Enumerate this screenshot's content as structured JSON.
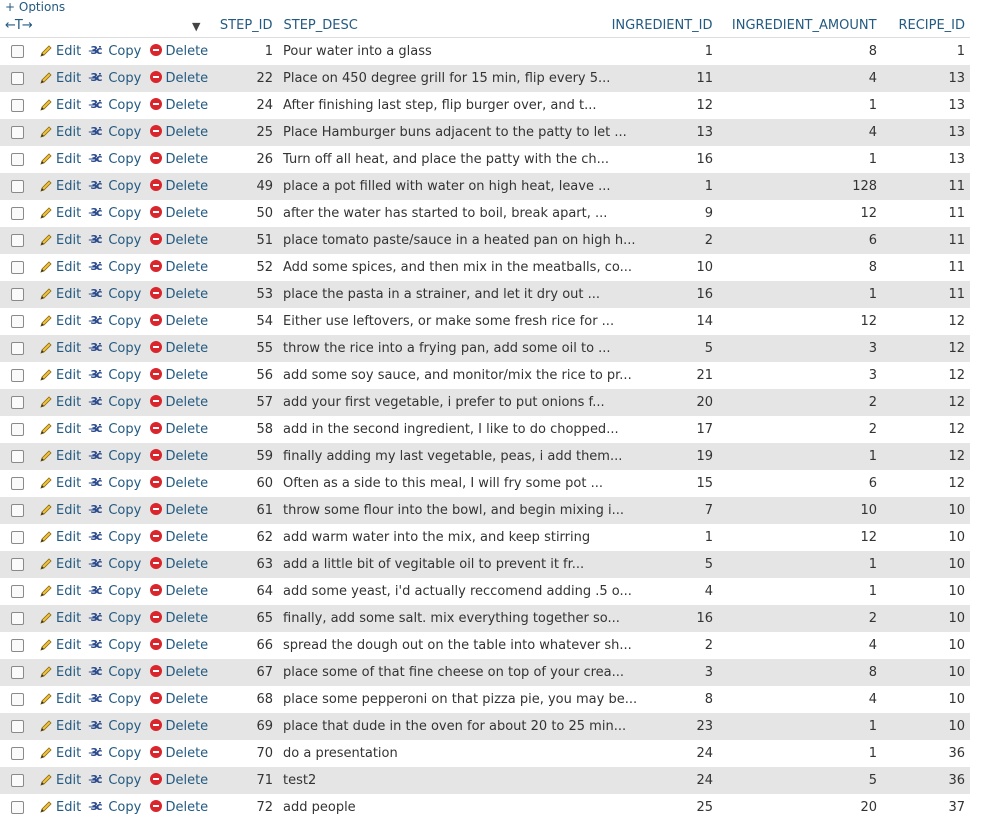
{
  "options_label": "+ Options",
  "columns": {
    "step_id": "STEP_ID",
    "step_desc": "STEP_DESC",
    "ingredient_id": "INGREDIENT_ID",
    "ingredient_amount": "INGREDIENT_AMOUNT",
    "recipe_id": "RECIPE_ID"
  },
  "actions": {
    "edit": "Edit",
    "copy": "Copy",
    "delete": "Delete"
  },
  "rows": [
    {
      "step_id": "1",
      "desc": "Pour water into a glass",
      "ingredient_id": "1",
      "amount": "8",
      "recipe_id": "1"
    },
    {
      "step_id": "22",
      "desc": "Place on 450 degree grill for 15 min, flip every 5...",
      "ingredient_id": "11",
      "amount": "4",
      "recipe_id": "13"
    },
    {
      "step_id": "24",
      "desc": "After finishing last step, flip burger over, and t...",
      "ingredient_id": "12",
      "amount": "1",
      "recipe_id": "13"
    },
    {
      "step_id": "25",
      "desc": "Place Hamburger buns adjacent to the patty to let ...",
      "ingredient_id": "13",
      "amount": "4",
      "recipe_id": "13"
    },
    {
      "step_id": "26",
      "desc": "Turn off all heat, and place the patty with the ch...",
      "ingredient_id": "16",
      "amount": "1",
      "recipe_id": "13"
    },
    {
      "step_id": "49",
      "desc": "place a pot filled with water on high heat, leave ...",
      "ingredient_id": "1",
      "amount": "128",
      "recipe_id": "11"
    },
    {
      "step_id": "50",
      "desc": "after the water has started to boil, break apart, ...",
      "ingredient_id": "9",
      "amount": "12",
      "recipe_id": "11"
    },
    {
      "step_id": "51",
      "desc": "place tomato paste/sauce in a heated pan on high h...",
      "ingredient_id": "2",
      "amount": "6",
      "recipe_id": "11"
    },
    {
      "step_id": "52",
      "desc": "Add some spices, and then mix in the meatballs, co...",
      "ingredient_id": "10",
      "amount": "8",
      "recipe_id": "11"
    },
    {
      "step_id": "53",
      "desc": "place the pasta in a strainer, and let it dry out ...",
      "ingredient_id": "16",
      "amount": "1",
      "recipe_id": "11"
    },
    {
      "step_id": "54",
      "desc": "Either use leftovers, or make some fresh rice for ...",
      "ingredient_id": "14",
      "amount": "12",
      "recipe_id": "12"
    },
    {
      "step_id": "55",
      "desc": "throw the rice into a frying pan, add some oil to ...",
      "ingredient_id": "5",
      "amount": "3",
      "recipe_id": "12"
    },
    {
      "step_id": "56",
      "desc": "add some soy sauce, and monitor/mix the rice to pr...",
      "ingredient_id": "21",
      "amount": "3",
      "recipe_id": "12"
    },
    {
      "step_id": "57",
      "desc": "add your first vegetable, i prefer to put onions f...",
      "ingredient_id": "20",
      "amount": "2",
      "recipe_id": "12"
    },
    {
      "step_id": "58",
      "desc": "add in the second ingredient, I like to do chopped...",
      "ingredient_id": "17",
      "amount": "2",
      "recipe_id": "12"
    },
    {
      "step_id": "59",
      "desc": "finally adding my last vegetable, peas, i add them...",
      "ingredient_id": "19",
      "amount": "1",
      "recipe_id": "12"
    },
    {
      "step_id": "60",
      "desc": "Often as a side to this meal, I will fry some pot ...",
      "ingredient_id": "15",
      "amount": "6",
      "recipe_id": "12"
    },
    {
      "step_id": "61",
      "desc": "throw some flour into the bowl, and begin mixing i...",
      "ingredient_id": "7",
      "amount": "10",
      "recipe_id": "10"
    },
    {
      "step_id": "62",
      "desc": "add warm water into the mix, and keep stirring",
      "ingredient_id": "1",
      "amount": "12",
      "recipe_id": "10"
    },
    {
      "step_id": "63",
      "desc": "add a little bit of vegitable oil to prevent it fr...",
      "ingredient_id": "5",
      "amount": "1",
      "recipe_id": "10"
    },
    {
      "step_id": "64",
      "desc": "add some yeast, i'd actually reccomend adding .5 o...",
      "ingredient_id": "4",
      "amount": "1",
      "recipe_id": "10"
    },
    {
      "step_id": "65",
      "desc": "finally, add some salt. mix everything together so...",
      "ingredient_id": "16",
      "amount": "2",
      "recipe_id": "10"
    },
    {
      "step_id": "66",
      "desc": "spread the dough out on the table into whatever sh...",
      "ingredient_id": "2",
      "amount": "4",
      "recipe_id": "10"
    },
    {
      "step_id": "67",
      "desc": "place some of that fine cheese on top of your crea...",
      "ingredient_id": "3",
      "amount": "8",
      "recipe_id": "10"
    },
    {
      "step_id": "68",
      "desc": "place some pepperoni on that pizza pie, you may be...",
      "ingredient_id": "8",
      "amount": "4",
      "recipe_id": "10"
    },
    {
      "step_id": "69",
      "desc": "place that dude in the oven for about 20 to 25 min...",
      "ingredient_id": "23",
      "amount": "1",
      "recipe_id": "10"
    },
    {
      "step_id": "70",
      "desc": "do a presentation",
      "ingredient_id": "24",
      "amount": "1",
      "recipe_id": "36"
    },
    {
      "step_id": "71",
      "desc": "test2",
      "ingredient_id": "24",
      "amount": "5",
      "recipe_id": "36"
    },
    {
      "step_id": "72",
      "desc": "add people",
      "ingredient_id": "25",
      "amount": "20",
      "recipe_id": "37"
    }
  ]
}
